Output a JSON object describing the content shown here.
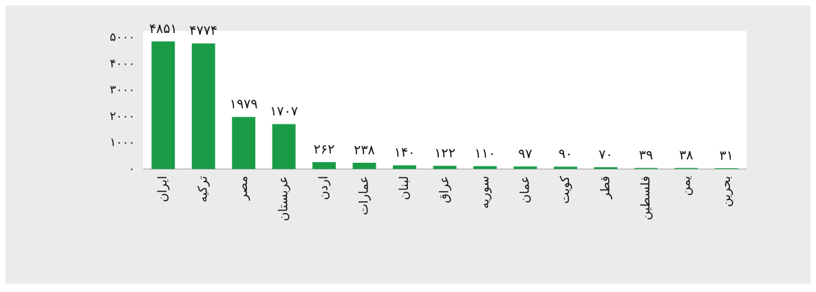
{
  "chart_data": {
    "type": "bar",
    "categories": [
      "ایران",
      "ترکیه",
      "مصر",
      "عربستان",
      "اردن",
      "عمارات",
      "لبنان",
      "عراق",
      "سوریه",
      "عمان",
      "کویت",
      "قطر",
      "فلسطین",
      "یمن",
      "بحرین"
    ],
    "values": [
      4851,
      4774,
      1979,
      1707,
      262,
      238,
      140,
      122,
      110,
      97,
      90,
      70,
      39,
      38,
      31
    ],
    "value_labels": [
      "۴۸۵۱",
      "۴۷۷۴",
      "۱۹۷۹",
      "۱۷۰۷",
      "۲۶۲",
      "۲۳۸",
      "۱۴۰",
      "۱۲۲",
      "۱۱۰",
      "۹۷",
      "۹۰",
      "۷۰",
      "۳۹",
      "۳۸",
      "۳۱"
    ],
    "color": "#1a9c47",
    "ylim": [
      0,
      5250
    ],
    "yticks": [
      {
        "value": 0,
        "label": "۰"
      },
      {
        "value": 1000,
        "label": "۱۰۰۰"
      },
      {
        "value": 2000,
        "label": "۲۰۰۰"
      },
      {
        "value": 3000,
        "label": "۳۰۰۰"
      },
      {
        "value": 4000,
        "label": "۴۰۰۰"
      },
      {
        "value": 5000,
        "label": "۵۰۰۰"
      }
    ],
    "grid": false
  }
}
